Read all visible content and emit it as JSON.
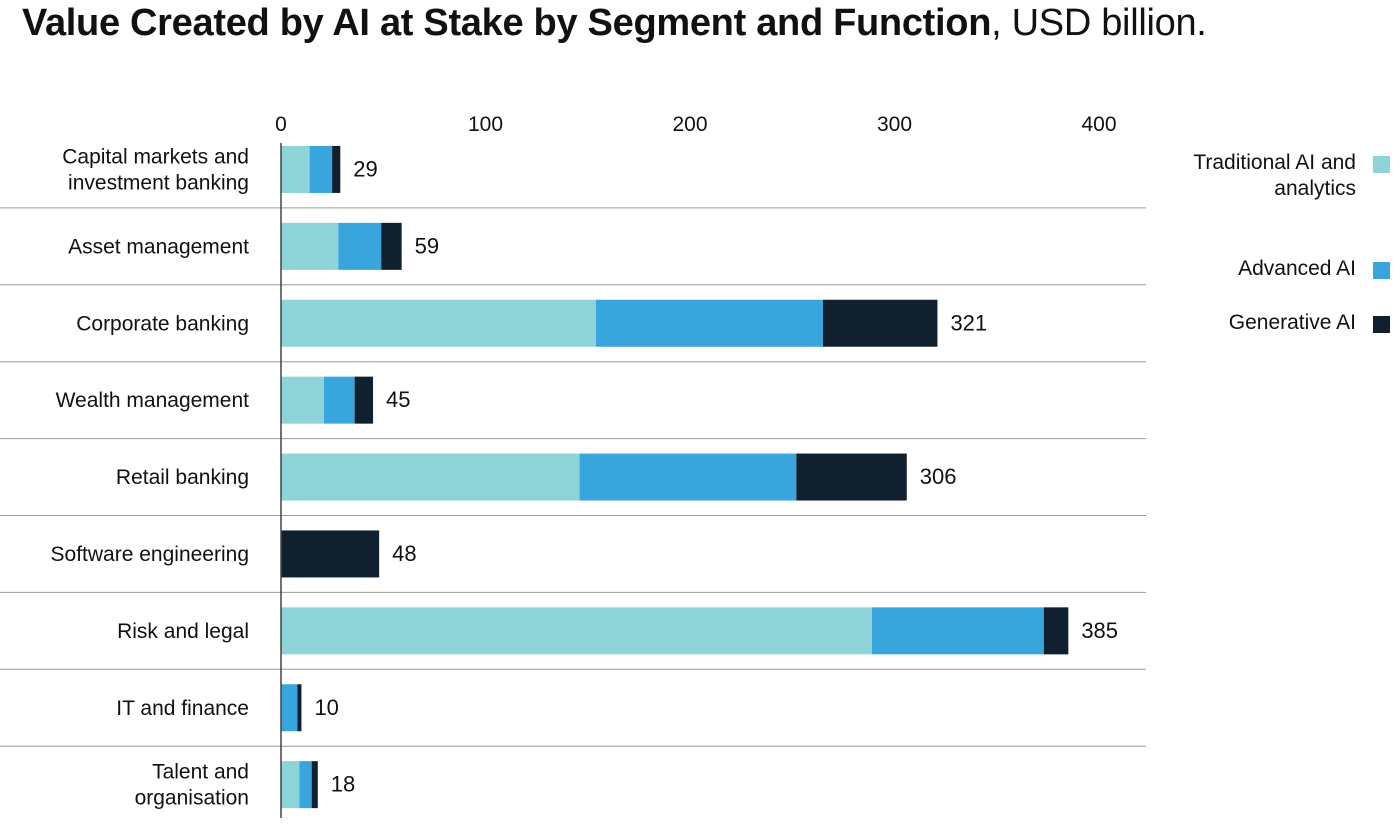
{
  "title": {
    "bold": "Value Created by AI at Stake by Segment and Function",
    "rest": ", USD billion."
  },
  "legend": [
    {
      "label": "Traditional AI and analytics",
      "color": "#8dd3d7"
    },
    {
      "label": "Advanced AI",
      "color": "#39a5dd"
    },
    {
      "label": "Generative AI",
      "color": "#11202f"
    }
  ],
  "chart_data": {
    "type": "bar",
    "orientation": "horizontal",
    "stacked": true,
    "title": "Value Created by AI at Stake by Segment and Function, USD billion.",
    "xlim": [
      0,
      420
    ],
    "xticks": [
      0,
      100,
      200,
      300,
      400
    ],
    "categories": [
      [
        "Capital markets and",
        "investment banking"
      ],
      [
        "Asset management"
      ],
      [
        "Corporate banking"
      ],
      [
        "Wealth management"
      ],
      [
        "Retail banking"
      ],
      [
        "Software engineering"
      ],
      [
        "Risk and legal"
      ],
      [
        "IT and finance"
      ],
      [
        "Talent and",
        "organisation"
      ]
    ],
    "series": [
      {
        "name": "Traditional AI and analytics",
        "color": "#8dd3d7",
        "values": [
          14,
          28,
          154,
          21,
          146,
          0,
          289,
          0,
          9
        ]
      },
      {
        "name": "Advanced AI",
        "color": "#39a5dd",
        "values": [
          11,
          21,
          111,
          15,
          106,
          0,
          84,
          8,
          6
        ]
      },
      {
        "name": "Generative AI",
        "color": "#11202f",
        "values": [
          4,
          10,
          56,
          9,
          54,
          48,
          12,
          2,
          3
        ]
      }
    ],
    "totals": [
      29,
      59,
      321,
      45,
      306,
      48,
      385,
      10,
      18
    ]
  }
}
